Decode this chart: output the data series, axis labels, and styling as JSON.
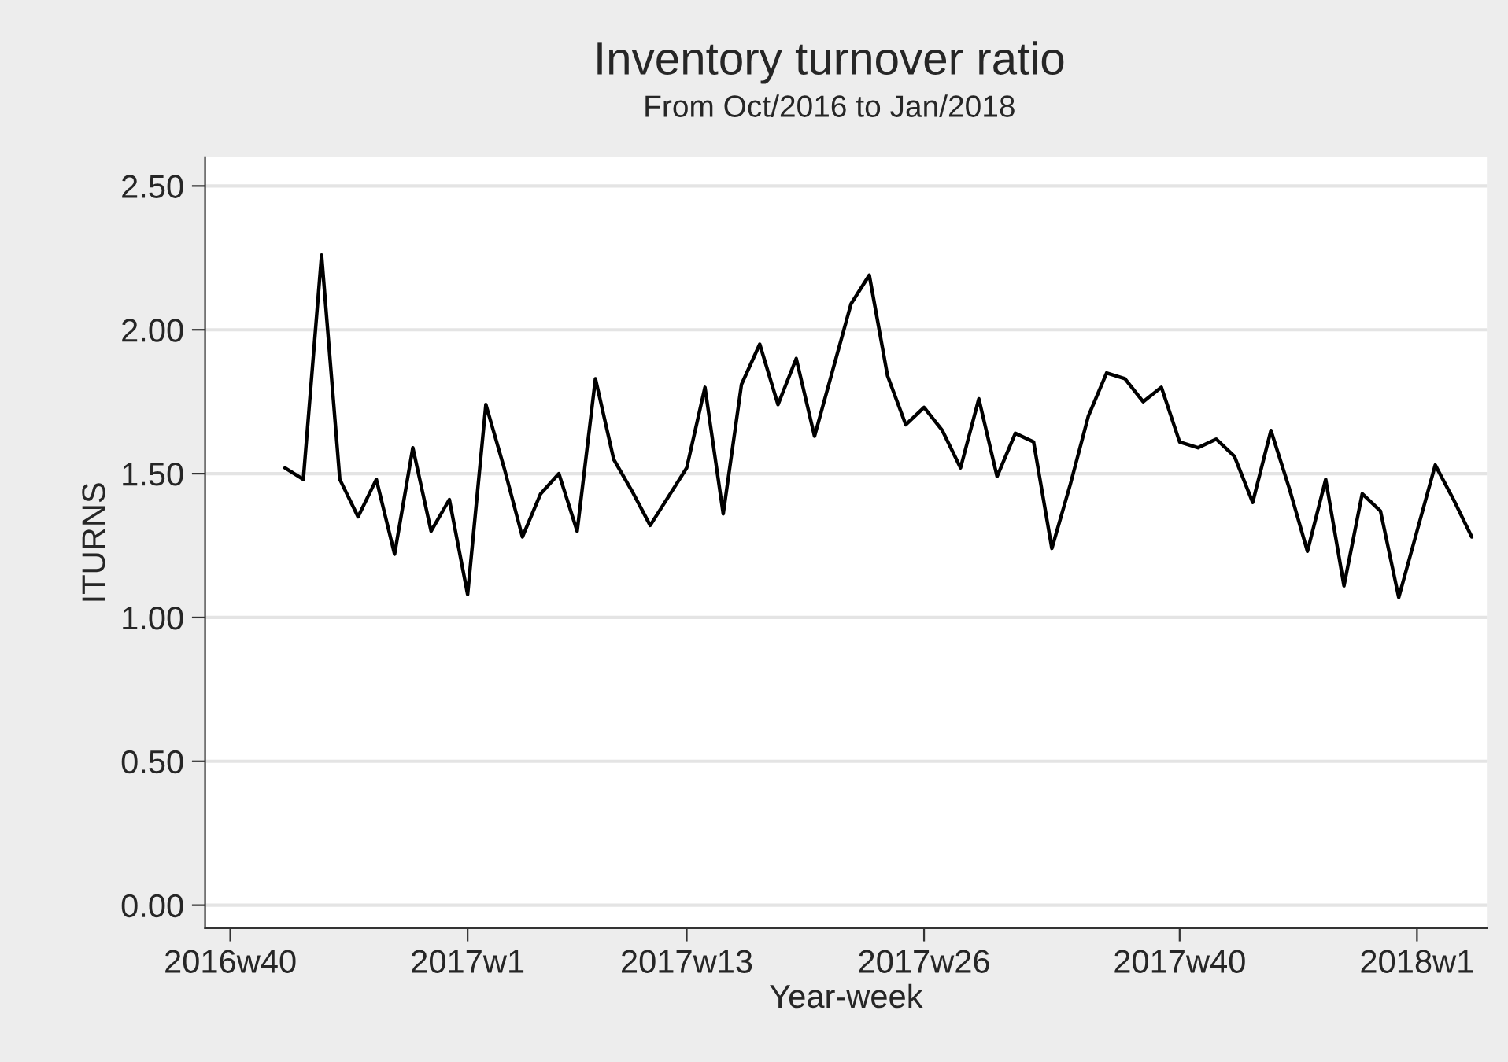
{
  "chart_data": {
    "type": "line",
    "title": "Inventory turnover ratio",
    "subtitle": "From Oct/2016 to Jan/2018",
    "xlabel": "Year-week",
    "ylabel": "ITURNS",
    "categories": [
      "2016w40",
      null,
      null,
      null,
      null,
      null,
      null,
      null,
      null,
      null,
      null,
      null,
      null,
      "2017w1",
      null,
      null,
      null,
      null,
      null,
      null,
      null,
      null,
      null,
      null,
      null,
      "2017w13",
      null,
      null,
      null,
      null,
      null,
      null,
      null,
      null,
      null,
      null,
      null,
      null,
      "2017w26",
      null,
      null,
      null,
      null,
      null,
      null,
      null,
      null,
      null,
      null,
      null,
      null,
      null,
      "2017w40",
      null,
      null,
      null,
      null,
      null,
      null,
      null,
      null,
      null,
      null,
      null,
      null,
      "2018w1",
      null,
      null,
      null
    ],
    "series": [
      {
        "color": "#000000",
        "values": [
          null,
          null,
          null,
          1.52,
          1.48,
          2.26,
          1.48,
          1.35,
          1.48,
          1.22,
          1.59,
          1.3,
          1.41,
          1.08,
          1.74,
          1.52,
          1.28,
          1.43,
          1.5,
          1.3,
          1.83,
          1.55,
          1.44,
          1.32,
          1.42,
          1.52,
          1.8,
          1.36,
          1.81,
          1.95,
          1.74,
          1.9,
          1.63,
          1.86,
          2.09,
          2.19,
          1.84,
          1.67,
          1.73,
          1.65,
          1.52,
          1.76,
          1.49,
          1.64,
          1.61,
          1.24,
          1.46,
          1.7,
          1.85,
          1.83,
          1.75,
          1.8,
          1.61,
          1.59,
          1.62,
          1.56,
          1.4,
          1.65,
          1.45,
          1.23,
          1.48,
          1.11,
          1.43,
          1.37,
          1.07,
          1.3,
          1.53,
          1.41,
          1.28
        ]
      }
    ],
    "ylim": [
      -0.08,
      2.6
    ],
    "yticks": [
      {
        "value": 0,
        "label": "0.00"
      },
      {
        "value": 0.5,
        "label": "0.50"
      },
      {
        "value": 1,
        "label": "1.00"
      },
      {
        "value": 1.5,
        "label": "1.50"
      },
      {
        "value": 2,
        "label": "2.00"
      },
      {
        "value": 2.5,
        "label": "2.50"
      }
    ],
    "grid": "y",
    "line_style": "solid"
  }
}
